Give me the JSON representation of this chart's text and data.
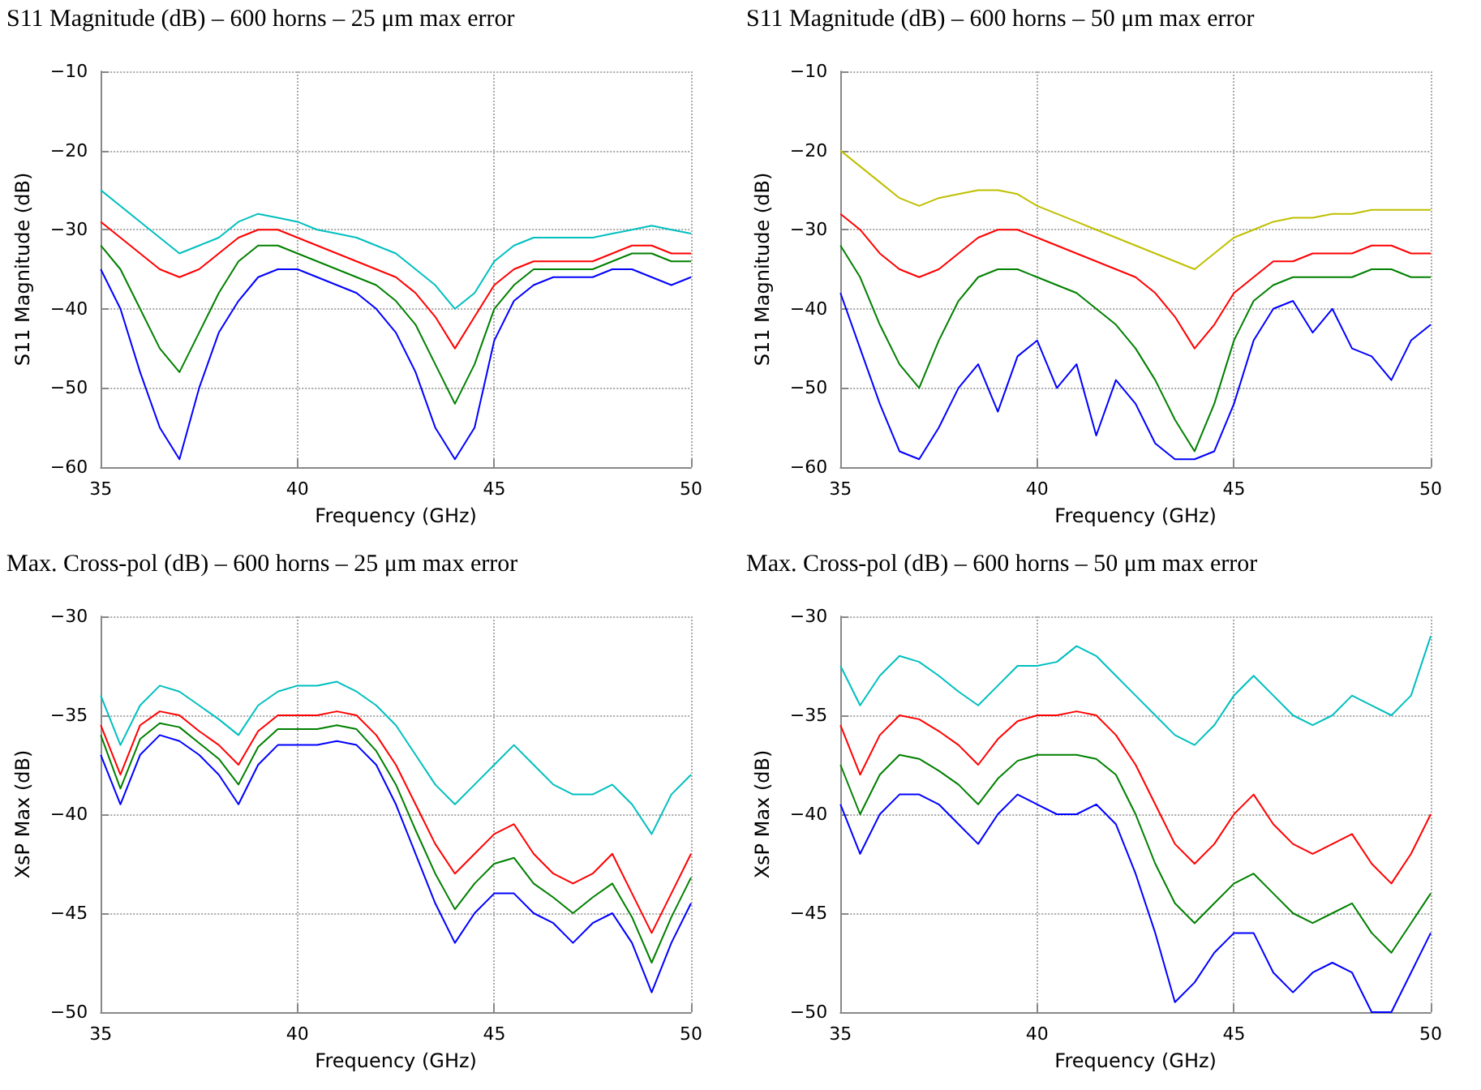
{
  "chart_data": [
    {
      "type": "line",
      "title": "S11 Magnitude (dB) – 600 horns – 25 μm max error",
      "xlabel": "Frequency (GHz)",
      "ylabel": "S11 Magnitude (dB)",
      "x": [
        35,
        35.5,
        36,
        36.5,
        37,
        37.5,
        38,
        38.5,
        39,
        39.5,
        40,
        40.5,
        41,
        41.5,
        42,
        42.5,
        43,
        43.5,
        44,
        44.5,
        45,
        45.5,
        46,
        46.5,
        47,
        47.5,
        48,
        48.5,
        49,
        49.5,
        50
      ],
      "xlim": [
        35,
        50
      ],
      "xticks": [
        35,
        40,
        45,
        50
      ],
      "ylim": [
        -60,
        -10
      ],
      "yticks": [
        -60,
        -50,
        -40,
        -30,
        -20,
        -10
      ],
      "grid": true,
      "series": [
        {
          "color": "#00bfbf",
          "values": [
            -25,
            -27,
            -29,
            -31,
            -33,
            -32,
            -31,
            -29,
            -28,
            -28.5,
            -29,
            -30,
            -30.5,
            -31,
            -32,
            -33,
            -35,
            -37,
            -40,
            -38,
            -34,
            -32,
            -31,
            -31,
            -31,
            -31,
            -30.5,
            -30,
            -29.5,
            -30,
            -30.5
          ]
        },
        {
          "color": "#ff0000",
          "values": [
            -29,
            -31,
            -33,
            -35,
            -36,
            -35,
            -33,
            -31,
            -30,
            -30,
            -31,
            -32,
            -33,
            -34,
            -35,
            -36,
            -38,
            -41,
            -45,
            -41,
            -37,
            -35,
            -34,
            -34,
            -34,
            -34,
            -33,
            -32,
            -32,
            -33,
            -33
          ]
        },
        {
          "color": "#008000",
          "values": [
            -32,
            -35,
            -40,
            -45,
            -48,
            -43,
            -38,
            -34,
            -32,
            -32,
            -33,
            -34,
            -35,
            -36,
            -37,
            -39,
            -42,
            -47,
            -52,
            -47,
            -40,
            -37,
            -35,
            -35,
            -35,
            -35,
            -34,
            -33,
            -33,
            -34,
            -34
          ]
        },
        {
          "color": "#0000ff",
          "values": [
            -35,
            -40,
            -48,
            -55,
            -59,
            -50,
            -43,
            -39,
            -36,
            -35,
            -35,
            -36,
            -37,
            -38,
            -40,
            -43,
            -48,
            -55,
            -59,
            -55,
            -44,
            -39,
            -37,
            -36,
            -36,
            -36,
            -35,
            -35,
            -36,
            -37,
            -36
          ]
        }
      ]
    },
    {
      "type": "line",
      "title": "S11 Magnitude (dB) – 600 horns – 50 μm max error",
      "xlabel": "Frequency (GHz)",
      "ylabel": "S11 Magnitude (dB)",
      "x": [
        35,
        35.5,
        36,
        36.5,
        37,
        37.5,
        38,
        38.5,
        39,
        39.5,
        40,
        40.5,
        41,
        41.5,
        42,
        42.5,
        43,
        43.5,
        44,
        44.5,
        45,
        45.5,
        46,
        46.5,
        47,
        47.5,
        48,
        48.5,
        49,
        49.5,
        50
      ],
      "xlim": [
        35,
        50
      ],
      "xticks": [
        35,
        40,
        45,
        50
      ],
      "ylim": [
        -60,
        -10
      ],
      "yticks": [
        -60,
        -50,
        -40,
        -30,
        -20,
        -10
      ],
      "grid": true,
      "series": [
        {
          "color": "#bfbf00",
          "values": [
            -20,
            -22,
            -24,
            -26,
            -27,
            -26,
            -25.5,
            -25,
            -25,
            -25.5,
            -27,
            -28,
            -29,
            -30,
            -31,
            -32,
            -33,
            -34,
            -35,
            -33,
            -31,
            -30,
            -29,
            -28.5,
            -28.5,
            -28,
            -28,
            -27.5,
            -27.5,
            -27.5,
            -27.5
          ]
        },
        {
          "color": "#ff0000",
          "values": [
            -28,
            -30,
            -33,
            -35,
            -36,
            -35,
            -33,
            -31,
            -30,
            -30,
            -31,
            -32,
            -33,
            -34,
            -35,
            -36,
            -38,
            -41,
            -45,
            -42,
            -38,
            -36,
            -34,
            -34,
            -33,
            -33,
            -33,
            -32,
            -32,
            -33,
            -33
          ]
        },
        {
          "color": "#008000",
          "values": [
            -32,
            -36,
            -42,
            -47,
            -50,
            -44,
            -39,
            -36,
            -35,
            -35,
            -36,
            -37,
            -38,
            -40,
            -42,
            -45,
            -49,
            -54,
            -58,
            -52,
            -44,
            -39,
            -37,
            -36,
            -36,
            -36,
            -36,
            -35,
            -35,
            -36,
            -36
          ]
        },
        {
          "color": "#0000ff",
          "values": [
            -38,
            -45,
            -52,
            -58,
            -59,
            -55,
            -50,
            -47,
            -53,
            -46,
            -44,
            -50,
            -47,
            -56,
            -49,
            -52,
            -57,
            -59,
            -59,
            -58,
            -52,
            -44,
            -40,
            -39,
            -43,
            -40,
            -45,
            -46,
            -49,
            -44,
            -42
          ]
        }
      ]
    },
    {
      "type": "line",
      "title": "Max. Cross-pol (dB) – 600 horns – 25 μm max error",
      "xlabel": "Frequency (GHz)",
      "ylabel": "XsP Max (dB)",
      "x": [
        35,
        35.5,
        36,
        36.5,
        37,
        37.5,
        38,
        38.5,
        39,
        39.5,
        40,
        40.5,
        41,
        41.5,
        42,
        42.5,
        43,
        43.5,
        44,
        44.5,
        45,
        45.5,
        46,
        46.5,
        47,
        47.5,
        48,
        48.5,
        49,
        49.5,
        50
      ],
      "xlim": [
        35,
        50
      ],
      "xticks": [
        35,
        40,
        45,
        50
      ],
      "ylim": [
        -50,
        -30
      ],
      "yticks": [
        -50,
        -45,
        -40,
        -35,
        -30
      ],
      "grid": true,
      "series": [
        {
          "color": "#00bfbf",
          "values": [
            -34,
            -36.5,
            -34.5,
            -33.5,
            -33.8,
            -34.5,
            -35.2,
            -36,
            -34.5,
            -33.8,
            -33.5,
            -33.5,
            -33.3,
            -33.8,
            -34.5,
            -35.5,
            -37,
            -38.5,
            -39.5,
            -38.5,
            -37.5,
            -36.5,
            -37.5,
            -38.5,
            -39,
            -39,
            -38.5,
            -39.5,
            -41,
            -39,
            -38
          ]
        },
        {
          "color": "#ff0000",
          "values": [
            -35.5,
            -38,
            -35.5,
            -34.8,
            -35,
            -35.8,
            -36.5,
            -37.5,
            -35.8,
            -35,
            -35,
            -35,
            -34.8,
            -35,
            -36,
            -37.5,
            -39.5,
            -41.5,
            -43,
            -42,
            -41,
            -40.5,
            -42,
            -43,
            -43.5,
            -43,
            -42,
            -44,
            -46,
            -44,
            -42
          ]
        },
        {
          "color": "#008000",
          "values": [
            -36,
            -38.7,
            -36.2,
            -35.4,
            -35.6,
            -36.4,
            -37.2,
            -38.5,
            -36.6,
            -35.7,
            -35.7,
            -35.7,
            -35.5,
            -35.7,
            -36.8,
            -38.5,
            -40.8,
            -43,
            -44.8,
            -43.5,
            -42.5,
            -42.2,
            -43.5,
            -44.2,
            -45,
            -44.2,
            -43.5,
            -45.2,
            -47.5,
            -45.2,
            -43.2
          ]
        },
        {
          "color": "#0000ff",
          "values": [
            -37,
            -39.5,
            -37,
            -36,
            -36.3,
            -37,
            -38,
            -39.5,
            -37.5,
            -36.5,
            -36.5,
            -36.5,
            -36.3,
            -36.5,
            -37.5,
            -39.5,
            -42,
            -44.5,
            -46.5,
            -45,
            -44,
            -44,
            -45,
            -45.5,
            -46.5,
            -45.5,
            -45,
            -46.5,
            -49,
            -46.5,
            -44.5
          ]
        }
      ]
    },
    {
      "type": "line",
      "title": "Max. Cross-pol (dB) – 600 horns – 50 μm max error",
      "xlabel": "Frequency (GHz)",
      "ylabel": "XsP Max (dB)",
      "x": [
        35,
        35.5,
        36,
        36.5,
        37,
        37.5,
        38,
        38.5,
        39,
        39.5,
        40,
        40.5,
        41,
        41.5,
        42,
        42.5,
        43,
        43.5,
        44,
        44.5,
        45,
        45.5,
        46,
        46.5,
        47,
        47.5,
        48,
        48.5,
        49,
        49.5,
        50
      ],
      "xlim": [
        35,
        50
      ],
      "xticks": [
        35,
        40,
        45,
        50
      ],
      "ylim": [
        -50,
        -30
      ],
      "yticks": [
        -50,
        -45,
        -40,
        -35,
        -30
      ],
      "grid": true,
      "series": [
        {
          "color": "#00bfbf",
          "values": [
            -32.5,
            -34.5,
            -33,
            -32,
            -32.3,
            -33,
            -33.8,
            -34.5,
            -33.5,
            -32.5,
            -32.5,
            -32.3,
            -31.5,
            -32,
            -33,
            -34,
            -35,
            -36,
            -36.5,
            -35.5,
            -34,
            -33,
            -34,
            -35,
            -35.5,
            -35,
            -34,
            -34.5,
            -35,
            -34,
            -31
          ]
        },
        {
          "color": "#ff0000",
          "values": [
            -35.5,
            -38,
            -36,
            -35,
            -35.2,
            -35.8,
            -36.5,
            -37.5,
            -36.2,
            -35.3,
            -35,
            -35,
            -34.8,
            -35,
            -36,
            -37.5,
            -39.5,
            -41.5,
            -42.5,
            -41.5,
            -40,
            -39,
            -40.5,
            -41.5,
            -42,
            -41.5,
            -41,
            -42.5,
            -43.5,
            -42,
            -40
          ]
        },
        {
          "color": "#008000",
          "values": [
            -37.5,
            -40,
            -38,
            -37,
            -37.2,
            -37.8,
            -38.5,
            -39.5,
            -38.2,
            -37.3,
            -37,
            -37,
            -37,
            -37.2,
            -38,
            -40,
            -42.5,
            -44.5,
            -45.5,
            -44.5,
            -43.5,
            -43,
            -44,
            -45,
            -45.5,
            -45,
            -44.5,
            -46,
            -47,
            -45.5,
            -44
          ]
        },
        {
          "color": "#0000ff",
          "values": [
            -39.5,
            -42,
            -40,
            -39,
            -39,
            -39.5,
            -40.5,
            -41.5,
            -40,
            -39,
            -39.5,
            -40,
            -40,
            -39.5,
            -40.5,
            -43,
            -46,
            -49.5,
            -48.5,
            -47,
            -46,
            -46,
            -48,
            -49,
            -48,
            -47.5,
            -48,
            -50,
            -50,
            -48,
            -46
          ]
        }
      ]
    }
  ]
}
